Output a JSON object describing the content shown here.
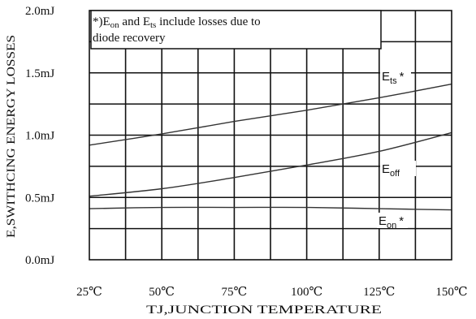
{
  "chart_data": {
    "type": "line",
    "xlabel": "TJ,JUNCTION TEMPERATURE",
    "ylabel": "E,SWITHCING ENERGY LOSSES",
    "xlim": [
      25,
      150
    ],
    "ylim": [
      0,
      2.0
    ],
    "x_ticks": [
      "25℃",
      "50℃",
      "75℃",
      "100℃",
      "125℃",
      "150℃"
    ],
    "y_ticks": [
      "0.0mJ",
      "0.5mJ",
      "1.0mJ",
      "1.5mJ",
      "2.0mJ"
    ],
    "grid": true,
    "annotation": {
      "line1_prefix": "*)E",
      "line1_sub1": "on",
      "line1_mid": " and E",
      "line1_sub2": "ts",
      "line1_suffix": " include losses due to",
      "line2": "diode recovery"
    },
    "series": [
      {
        "name": "Ets*",
        "label_main": "E",
        "label_sub": "ts",
        "label_suffix": "*",
        "x": [
          25,
          50,
          75,
          100,
          125,
          150
        ],
        "y": [
          0.92,
          1.01,
          1.11,
          1.2,
          1.3,
          1.41
        ]
      },
      {
        "name": "Eoff",
        "label_main": "E",
        "label_sub": "off",
        "label_suffix": "",
        "x": [
          25,
          50,
          75,
          100,
          125,
          150
        ],
        "y": [
          0.51,
          0.57,
          0.66,
          0.76,
          0.87,
          1.02
        ]
      },
      {
        "name": "Eon*",
        "label_main": "E",
        "label_sub": "on",
        "label_suffix": "*",
        "x": [
          25,
          50,
          75,
          100,
          125,
          150
        ],
        "y": [
          0.41,
          0.42,
          0.42,
          0.42,
          0.41,
          0.4
        ]
      }
    ]
  }
}
